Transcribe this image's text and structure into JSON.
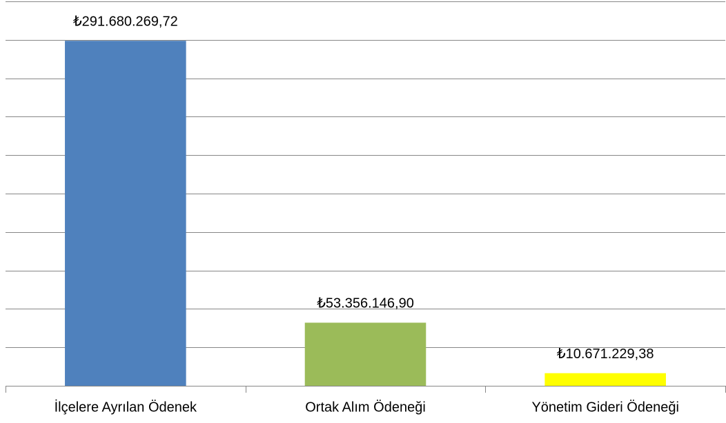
{
  "chart_data": {
    "type": "bar",
    "categories": [
      "İlçelere Ayrılan Ödenek",
      "Ortak Alım Ödeneği",
      "Yönetim Gideri Ödeneği"
    ],
    "values": [
      291680269.72,
      53356146.9,
      10671229.38
    ],
    "value_labels": [
      "₺291.680.269,72",
      "₺53.356.146,90",
      "₺10.671.229,38"
    ],
    "colors": [
      "#4f81bd",
      "#9bbb59",
      "#ffff00"
    ],
    "ylim": [
      0,
      325000000
    ],
    "yticks": [
      0,
      32500000,
      65000000,
      97500000,
      130000000,
      162500000,
      195000000,
      227500000,
      260000000,
      292500000,
      325000000
    ],
    "grid": true
  }
}
